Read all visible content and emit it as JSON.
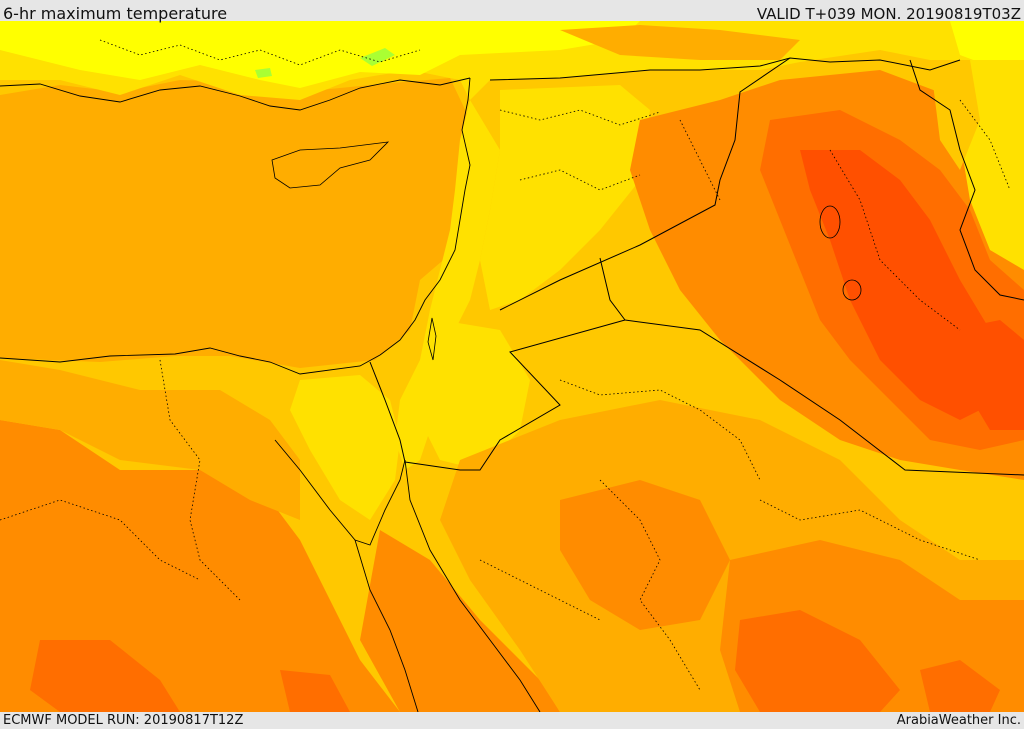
{
  "header": {
    "title": "6-hr maximum temperature",
    "valid": "VALID T+039 MON. 20190819T03Z"
  },
  "footer": {
    "model_run": "ECMWF MODEL RUN: 20190817T12Z",
    "credit": "ArabiaWeather Inc."
  },
  "map": {
    "colors": {
      "pale_yellow": "#ffff00",
      "yellow": "#ffe100",
      "yellow_orange": "#ffc800",
      "light_orange": "#ffad00",
      "orange": "#ff8c00",
      "dark_orange": "#ff6e00",
      "red_orange": "#ff5000",
      "green_patch": "#aaff33",
      "border": "#000000"
    }
  }
}
